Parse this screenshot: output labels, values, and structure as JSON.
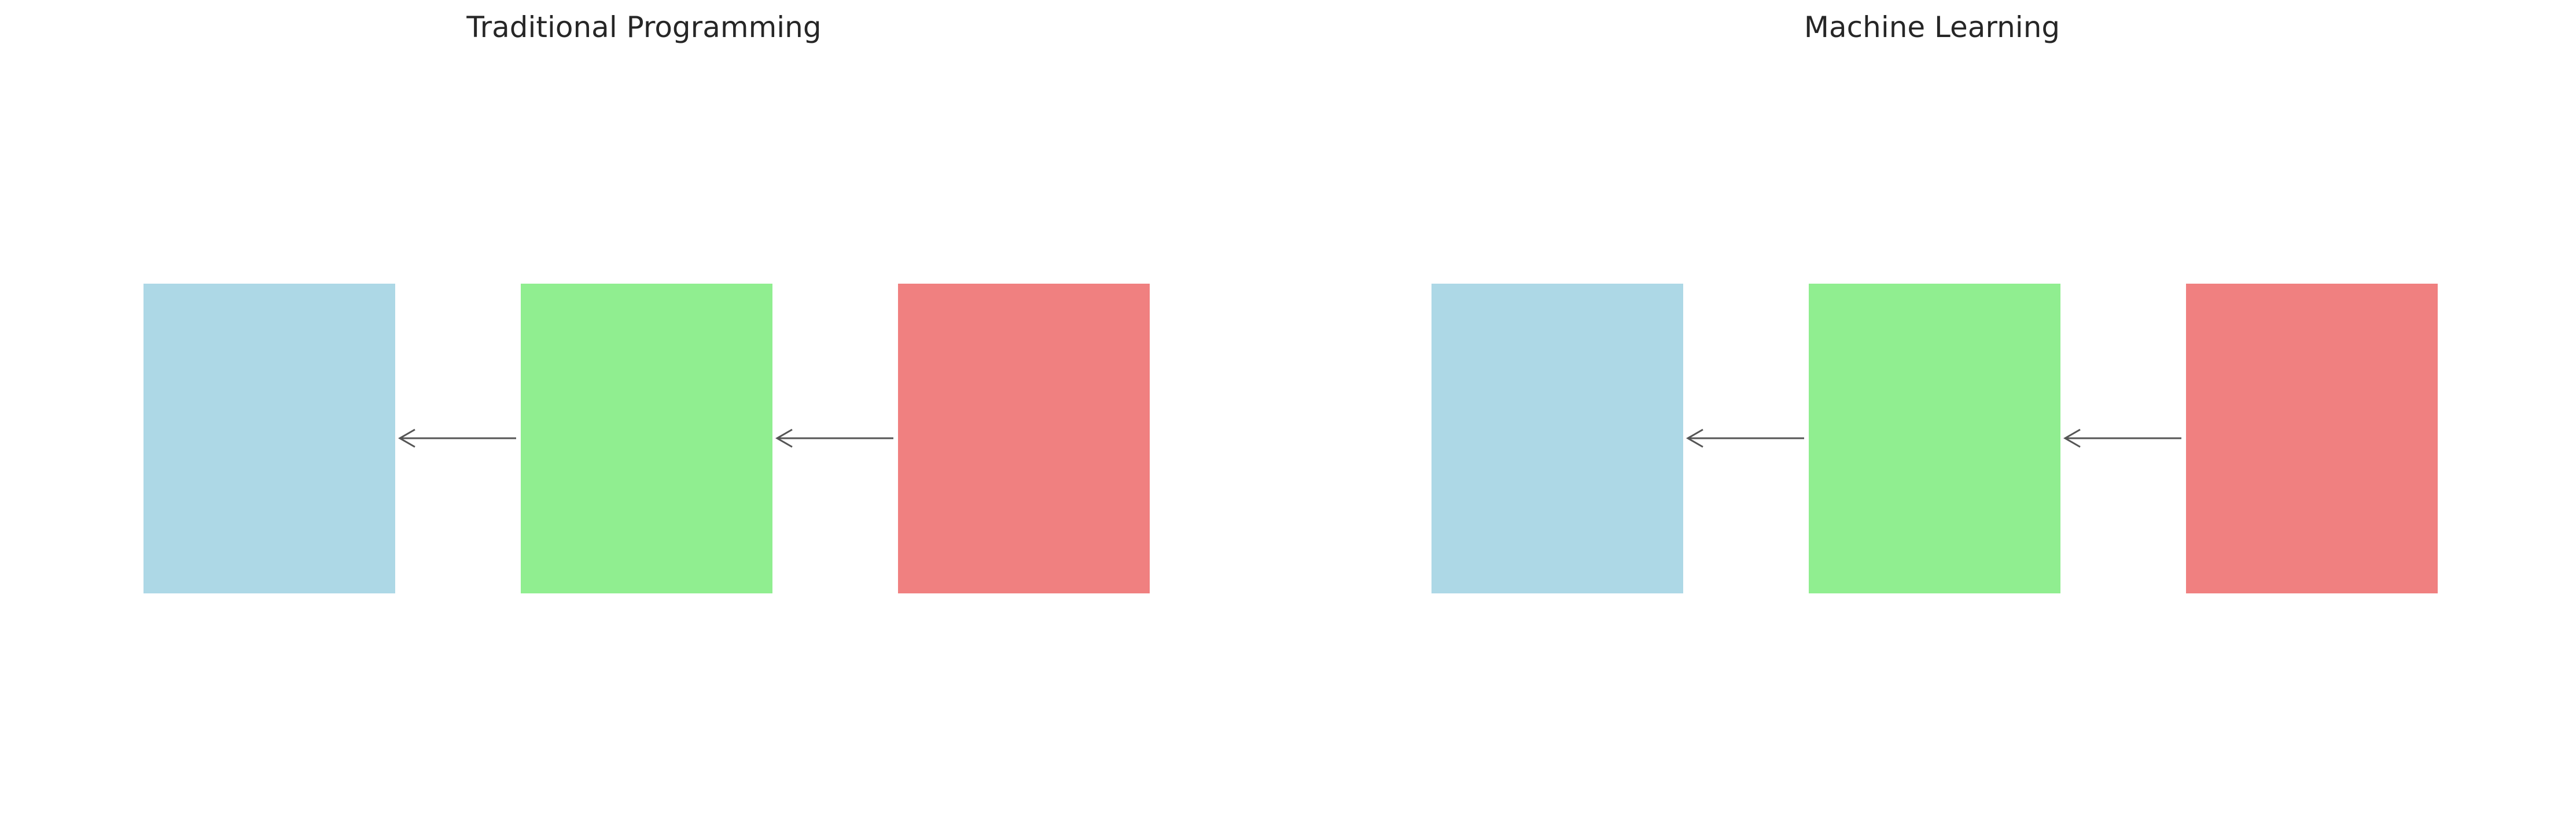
{
  "panels": [
    {
      "id": "traditional-programming",
      "title": "Traditional Programming",
      "boxes": [
        {
          "color": "#add8e6",
          "label": ""
        },
        {
          "color": "#90ee90",
          "label": ""
        },
        {
          "color": "#f08080",
          "label": ""
        }
      ],
      "arrow_color": "#555555"
    },
    {
      "id": "machine-learning",
      "title": "Machine Learning",
      "boxes": [
        {
          "color": "#add8e6",
          "label": ""
        },
        {
          "color": "#90ee90",
          "label": ""
        },
        {
          "color": "#f08080",
          "label": ""
        }
      ],
      "arrow_color": "#555555"
    }
  ]
}
